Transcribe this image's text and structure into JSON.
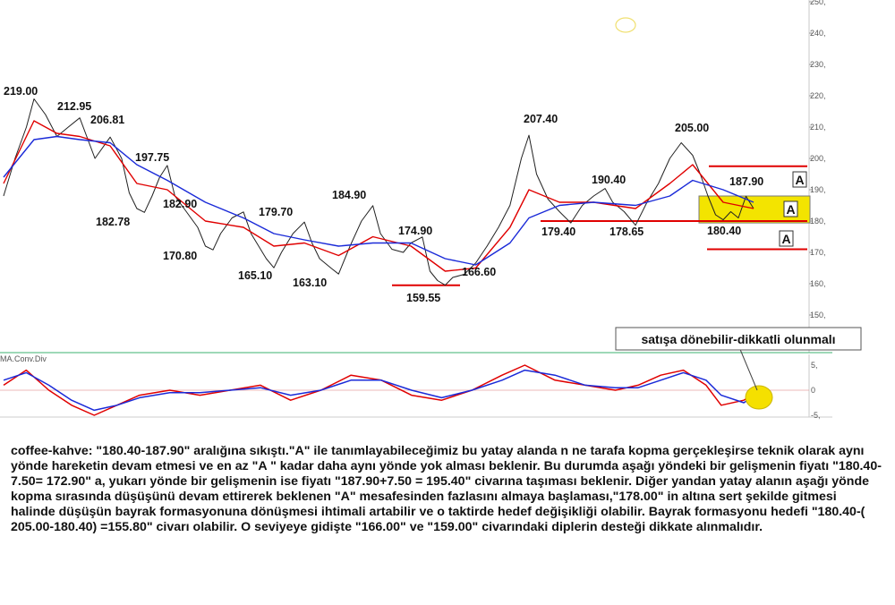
{
  "chart_data": [
    {
      "type": "line",
      "title": "",
      "ylim": [
        145,
        250
      ],
      "y_ticks": [
        "250,",
        "240,",
        "230,",
        "220,",
        "210,",
        "200,",
        "190,",
        "180,",
        "170,",
        "160,",
        "150,"
      ],
      "x_index_range": [
        0,
        160
      ],
      "series": [
        {
          "color": "#222222",
          "values": [
            [
              0,
              188
            ],
            [
              3,
              200
            ],
            [
              6,
              210
            ],
            [
              8,
              219
            ],
            [
              11,
              214
            ],
            [
              14,
              207
            ],
            [
              17,
              210
            ],
            [
              20,
              212.95
            ],
            [
              24,
              200
            ],
            [
              28,
              206.81
            ],
            [
              31,
              200
            ],
            [
              33,
              189
            ],
            [
              35,
              184
            ],
            [
              37,
              182.78
            ],
            [
              39,
              188
            ],
            [
              41,
              194
            ],
            [
              43,
              197.75
            ],
            [
              45,
              188
            ],
            [
              48,
              183
            ],
            [
              51,
              178
            ],
            [
              53,
              172
            ],
            [
              55,
              170.8
            ],
            [
              57,
              176
            ],
            [
              60,
              181
            ],
            [
              63,
              182.9
            ],
            [
              65,
              176
            ],
            [
              67,
              172
            ],
            [
              69,
              168
            ],
            [
              71,
              165.1
            ],
            [
              73,
              170
            ],
            [
              76,
              176
            ],
            [
              79,
              179.7
            ],
            [
              81,
              173
            ],
            [
              83,
              168
            ],
            [
              86,
              165
            ],
            [
              88,
              163.1
            ],
            [
              91,
              172
            ],
            [
              94,
              180
            ],
            [
              97,
              184.9
            ],
            [
              99,
              176
            ],
            [
              102,
              171
            ],
            [
              105,
              170
            ],
            [
              107,
              173
            ],
            [
              110,
              174.9
            ],
            [
              112,
              164
            ],
            [
              114,
              161
            ],
            [
              116,
              159.55
            ],
            [
              118,
              162
            ],
            [
              121,
              163
            ],
            [
              124,
              166.6
            ],
            [
              127,
              172
            ],
            [
              130,
              178
            ],
            [
              133,
              185
            ],
            [
              136,
              200
            ],
            [
              138,
              207.4
            ],
            [
              140,
              195
            ],
            [
              143,
              187
            ],
            [
              146,
              183
            ],
            [
              149,
              179.4
            ],
            [
              152,
              185
            ],
            [
              155,
              188
            ],
            [
              158,
              190.4
            ],
            [
              160,
              186
            ],
            [
              163,
              183
            ],
            [
              166,
              178.65
            ],
            [
              169,
              186
            ],
            [
              172,
              192
            ],
            [
              175,
              200
            ],
            [
              178,
              205
            ],
            [
              181,
              201
            ],
            [
              183,
              195
            ],
            [
              185,
              188
            ],
            [
              187,
              182
            ],
            [
              189,
              180.4
            ],
            [
              191,
              183
            ],
            [
              193,
              181
            ],
            [
              195,
              187.9
            ],
            [
              197,
              184
            ]
          ]
        },
        {
          "color": "#e00000",
          "values": [
            [
              0,
              192
            ],
            [
              8,
              212
            ],
            [
              14,
              208
            ],
            [
              20,
              207
            ],
            [
              28,
              204
            ],
            [
              35,
              192
            ],
            [
              43,
              190
            ],
            [
              53,
              180
            ],
            [
              63,
              178
            ],
            [
              71,
              172
            ],
            [
              79,
              173
            ],
            [
              88,
              169
            ],
            [
              97,
              175
            ],
            [
              107,
              172
            ],
            [
              116,
              164
            ],
            [
              124,
              165
            ],
            [
              133,
              178
            ],
            [
              138,
              190
            ],
            [
              146,
              186
            ],
            [
              155,
              186
            ],
            [
              166,
              184
            ],
            [
              175,
              192
            ],
            [
              181,
              198
            ],
            [
              189,
              186
            ],
            [
              197,
              184
            ]
          ]
        },
        {
          "color": "#1a2ad8",
          "values": [
            [
              0,
              194
            ],
            [
              8,
              206
            ],
            [
              14,
              207
            ],
            [
              20,
              206
            ],
            [
              28,
              205
            ],
            [
              35,
              198
            ],
            [
              43,
              193
            ],
            [
              53,
              186
            ],
            [
              63,
              181
            ],
            [
              71,
              176
            ],
            [
              79,
              174
            ],
            [
              88,
              172
            ],
            [
              97,
              173
            ],
            [
              107,
              173
            ],
            [
              116,
              168
            ],
            [
              124,
              166
            ],
            [
              133,
              173
            ],
            [
              138,
              181
            ],
            [
              146,
              185
            ],
            [
              155,
              186
            ],
            [
              166,
              185
            ],
            [
              175,
              188
            ],
            [
              181,
              193
            ],
            [
              189,
              190
            ],
            [
              197,
              186
            ]
          ]
        }
      ],
      "price_labels": [
        {
          "text": "219.00",
          "value": 219.0
        },
        {
          "text": "212.95",
          "value": 212.95
        },
        {
          "text": "206.81",
          "value": 206.81
        },
        {
          "text": "197.75",
          "value": 197.75
        },
        {
          "text": "182.78",
          "value": 182.78
        },
        {
          "text": "182.90",
          "value": 182.9
        },
        {
          "text": "170.80",
          "value": 170.8
        },
        {
          "text": "179.70",
          "value": 179.7
        },
        {
          "text": "165.10",
          "value": 165.1
        },
        {
          "text": "184.90",
          "value": 184.9
        },
        {
          "text": "163.10",
          "value": 163.1
        },
        {
          "text": "174.90",
          "value": 174.9
        },
        {
          "text": "159.55",
          "value": 159.55
        },
        {
          "text": "166.60",
          "value": 166.6
        },
        {
          "text": "207.40",
          "value": 207.4
        },
        {
          "text": "190.40",
          "value": 190.4
        },
        {
          "text": "179.40",
          "value": 179.4
        },
        {
          "text": "178.65",
          "value": 178.65
        },
        {
          "text": "205.00",
          "value": 205.0
        },
        {
          "text": "187.90",
          "value": 187.9
        },
        {
          "text": "180.40",
          "value": 180.4
        }
      ],
      "horizontal_lines": [
        {
          "value": 197.5,
          "color": "#e00000"
        },
        {
          "value": 180.0,
          "color": "#e00000"
        },
        {
          "value": 171.0,
          "color": "#e00000"
        },
        {
          "value": 159.5,
          "color": "#e00000"
        }
      ],
      "range_box": {
        "from": 179.4,
        "to": 188.0,
        "color": "#f3e400"
      },
      "box_labels": [
        "A",
        "A",
        "A"
      ]
    },
    {
      "type": "line",
      "title": "MA.Conv.Div",
      "ylim": [
        -5.5,
        5.5
      ],
      "y_ticks": [
        "5,",
        "0",
        "-5,"
      ],
      "series": [
        {
          "color": "#e00000",
          "values": [
            [
              0,
              1
            ],
            [
              6,
              4
            ],
            [
              12,
              0
            ],
            [
              18,
              -3
            ],
            [
              24,
              -5
            ],
            [
              30,
              -3
            ],
            [
              36,
              -1
            ],
            [
              44,
              0
            ],
            [
              52,
              -1
            ],
            [
              60,
              0
            ],
            [
              68,
              1
            ],
            [
              76,
              -2
            ],
            [
              84,
              0
            ],
            [
              92,
              3
            ],
            [
              100,
              2
            ],
            [
              108,
              -1
            ],
            [
              116,
              -2
            ],
            [
              124,
              0
            ],
            [
              132,
              3
            ],
            [
              138,
              5
            ],
            [
              146,
              2
            ],
            [
              154,
              1
            ],
            [
              162,
              0
            ],
            [
              168,
              1
            ],
            [
              174,
              3
            ],
            [
              180,
              4
            ],
            [
              186,
              1
            ],
            [
              190,
              -3
            ],
            [
              196,
              -2
            ],
            [
              200,
              0
            ]
          ]
        },
        {
          "color": "#1a2ad8",
          "values": [
            [
              0,
              2
            ],
            [
              6,
              3.5
            ],
            [
              12,
              1
            ],
            [
              18,
              -2
            ],
            [
              24,
              -4
            ],
            [
              30,
              -3
            ],
            [
              36,
              -1.5
            ],
            [
              44,
              -0.5
            ],
            [
              52,
              -0.5
            ],
            [
              60,
              0
            ],
            [
              68,
              0.5
            ],
            [
              76,
              -1
            ],
            [
              84,
              0
            ],
            [
              92,
              2
            ],
            [
              100,
              2
            ],
            [
              108,
              0
            ],
            [
              116,
              -1.5
            ],
            [
              124,
              0
            ],
            [
              132,
              2
            ],
            [
              138,
              4
            ],
            [
              146,
              3
            ],
            [
              154,
              1
            ],
            [
              162,
              0.5
            ],
            [
              168,
              0.5
            ],
            [
              174,
              2
            ],
            [
              180,
              3.5
            ],
            [
              186,
              2
            ],
            [
              190,
              -1
            ],
            [
              196,
              -2.5
            ],
            [
              200,
              -0.5
            ]
          ]
        }
      ]
    }
  ],
  "annotation": {
    "callout": "satışa dönebilir-dikkatli olunmalı"
  },
  "commentary": "coffee-kahve: \"180.40-187.90\" aralığına sıkıştı.\"A\" ile tanımlayabileceğimiz bu yatay alanda n ne tarafa kopma gerçekleşirse teknik olarak aynı yönde hareketin devam etmesi ve en az \"A \" kadar daha aynı yönde yok alması beklenir. Bu durumda aşağı yöndeki bir gelişmenin fiyatı \"180.40-7.50= 172.90\" a, yukarı yönde bir gelişmenin ise fiyatı \"187.90+7.50 = 195.40\" civarına taşıması beklenir. Diğer yandan yatay alanın aşağı yönde kopma sırasında düşüşünü devam ettirerek beklenen \"A\" mesafesinden fazlasını almaya başlaması,\"178.00\" in altına sert şekilde gitmesi halinde düşüşün bayrak formasyonuna dönüşmesi ihtimali artabilir ve o taktirde hedef değişikliği olabilir. Bayrak formasyonu hedefi \"180.40-( 205.00-180.40) =155.80\" civarı olabilir. O seviyeye gidişte \"166.00\" ve \"159.00\" civarındaki diplerin desteği dikkate alınmalıdır."
}
